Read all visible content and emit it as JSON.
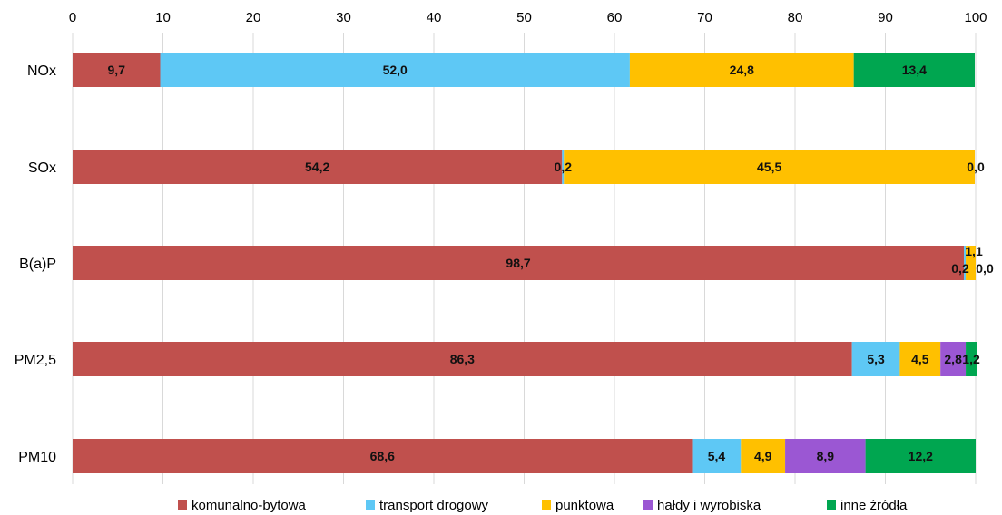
{
  "chart_data": {
    "type": "bar",
    "orientation": "horizontal",
    "stacked": true,
    "title": "",
    "xlabel": "",
    "ylabel": "",
    "xlim": [
      0,
      100
    ],
    "x_ticks": [
      "0",
      "10",
      "20",
      "30",
      "40",
      "50",
      "60",
      "70",
      "80",
      "90",
      "100"
    ],
    "grid": true,
    "legend_position": "bottom",
    "categories": [
      "NOx",
      "SOx",
      "B(a)P",
      "PM2,5",
      "PM10"
    ],
    "series": [
      {
        "name": "komunalno-bytowa",
        "color": "#c0504d",
        "values": [
          9.7,
          54.2,
          98.7,
          86.3,
          68.6
        ],
        "labels": [
          "9,7",
          "54,2",
          "98,7",
          "86,3",
          "68,6"
        ]
      },
      {
        "name": "transport drogowy",
        "color": "#5ec8f5",
        "values": [
          52.0,
          0.2,
          0.2,
          5.3,
          5.4
        ],
        "labels": [
          "52,0",
          "0,2",
          "0,2",
          "5,3",
          "5,4"
        ]
      },
      {
        "name": "punktowa",
        "color": "#ffc000",
        "values": [
          24.8,
          45.5,
          1.1,
          4.5,
          4.9
        ],
        "labels": [
          "24,8",
          "45,5",
          "1,1",
          "4,5",
          "4,9"
        ]
      },
      {
        "name": "hałdy i wyrobiska",
        "color": "#9b57d3",
        "values": [
          0,
          0,
          0,
          2.8,
          8.9
        ],
        "labels": [
          "",
          "",
          "",
          "2,8",
          "8,9"
        ]
      },
      {
        "name": "inne źródła",
        "color": "#00a650",
        "values": [
          13.4,
          0.0,
          0.0,
          1.2,
          12.2
        ],
        "labels": [
          "13,4",
          "0,0",
          "0,0",
          "1,2",
          "12,2"
        ]
      }
    ]
  }
}
